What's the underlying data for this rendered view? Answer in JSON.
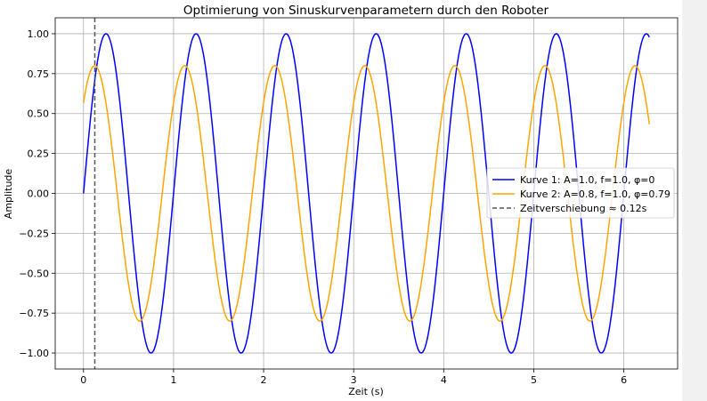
{
  "chart_data": {
    "type": "line",
    "title": "Optimierung von Sinuskurvenparametern durch den Roboter",
    "xlabel": "Zeit (s)",
    "ylabel": "Amplitude",
    "xlim": [
      -0.3142,
      6.5973
    ],
    "ylim": [
      -1.1,
      1.1
    ],
    "x_ticks": [
      0,
      1,
      2,
      3,
      4,
      5,
      6
    ],
    "x_tick_labels": [
      "0",
      "1",
      "2",
      "3",
      "4",
      "5",
      "6"
    ],
    "y_ticks": [
      -1.0,
      -0.75,
      -0.5,
      -0.25,
      0.0,
      0.25,
      0.5,
      0.75,
      1.0
    ],
    "y_tick_labels": [
      "−1.00",
      "−0.75",
      "−0.50",
      "−0.25",
      "0.00",
      "0.25",
      "0.50",
      "0.75",
      "1.00"
    ],
    "grid": true,
    "legend_position": "center-right",
    "x_range": [
      0,
      6.2832
    ],
    "series": [
      {
        "name": "Kurve 1: A=1.0, f=1.0, φ=0",
        "color": "#0000ff",
        "style": "solid",
        "function": "sine",
        "amplitude": 1.0,
        "frequency": 1.0,
        "phase": 0
      },
      {
        "name": "Kurve 2: A=0.8, f=1.0, φ=0.79",
        "color": "#ffa500",
        "style": "solid",
        "function": "sine",
        "amplitude": 0.8,
        "frequency": 1.0,
        "phase": 0.79
      },
      {
        "name": "Zeitverschiebung ≈ 0.12s",
        "color": "#555555",
        "style": "dashed",
        "function": "vline",
        "x": 0.1257
      }
    ]
  }
}
